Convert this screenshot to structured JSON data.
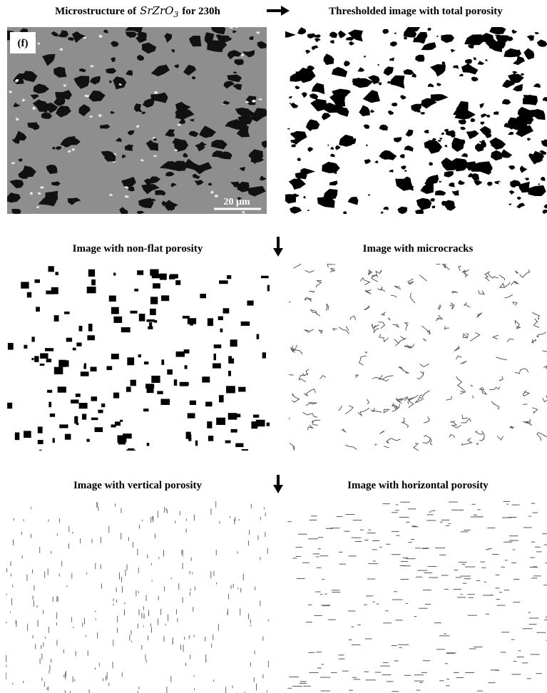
{
  "figure": {
    "panels": [
      {
        "title": {
          "prefix": "Microstructure of",
          "formula": "SrZrO",
          "subscript": "3",
          "suffix": "for 230h"
        },
        "label": "(f)",
        "scale_bar": "20 μm"
      },
      {
        "title": "Thresholded image with total porosity"
      },
      {
        "title": "Image with non-flat porosity"
      },
      {
        "title": "Image with microcracks"
      },
      {
        "title": "Image with vertical porosity"
      },
      {
        "title": "Image with horizontal porosity"
      }
    ]
  }
}
